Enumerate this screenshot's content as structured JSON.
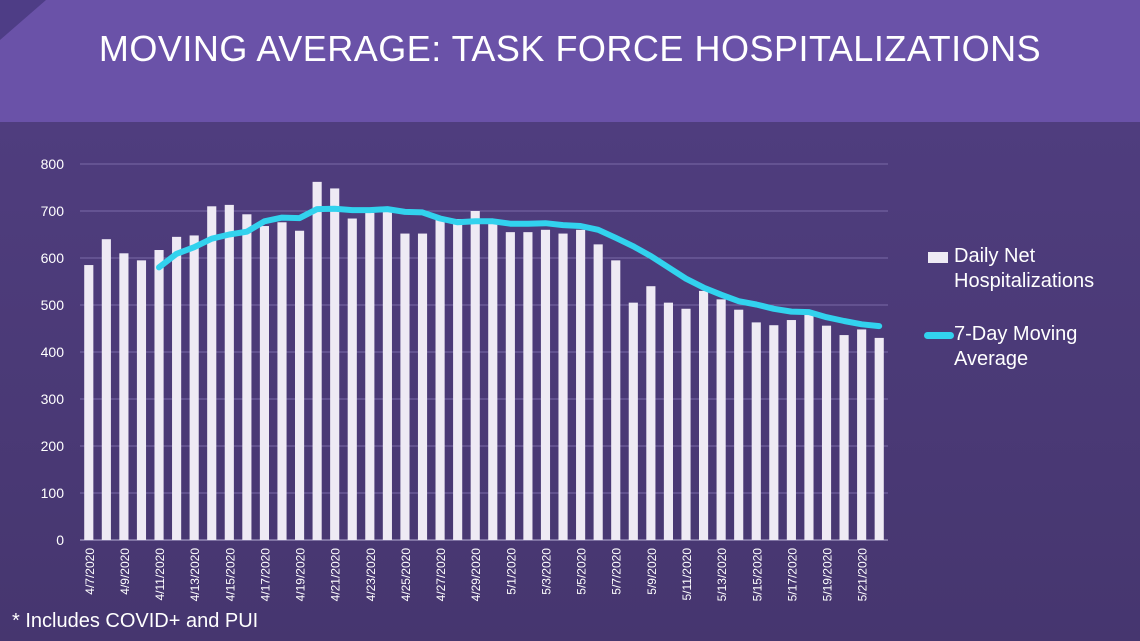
{
  "title": "MOVING AVERAGE: TASK FORCE HOSPITALIZATIONS",
  "footnote": "* Includes COVID+ and PUI",
  "legend": {
    "bar_label": "Daily Net Hospitalizations",
    "line_label": "7-Day Moving Average"
  },
  "colors": {
    "header": "#6a52a8",
    "background": "#4a3a78",
    "bars": "#eeeaf4",
    "line": "#32d2ee",
    "text": "#ffffff"
  },
  "chart_data": {
    "type": "bar",
    "ylim": [
      0,
      800
    ],
    "yticks": [
      0,
      100,
      200,
      300,
      400,
      500,
      600,
      700,
      800
    ],
    "grid": true,
    "legend_position": "right",
    "categories": [
      "4/7/2020",
      "4/8/2020",
      "4/9/2020",
      "4/10/2020",
      "4/11/2020",
      "4/12/2020",
      "4/13/2020",
      "4/14/2020",
      "4/15/2020",
      "4/16/2020",
      "4/17/2020",
      "4/18/2020",
      "4/19/2020",
      "4/20/2020",
      "4/21/2020",
      "4/22/2020",
      "4/23/2020",
      "4/24/2020",
      "4/25/2020",
      "4/26/2020",
      "4/27/2020",
      "4/28/2020",
      "4/29/2020",
      "4/30/2020",
      "5/1/2020",
      "5/2/2020",
      "5/3/2020",
      "5/4/2020",
      "5/5/2020",
      "5/6/2020",
      "5/7/2020",
      "5/8/2020",
      "5/9/2020",
      "5/10/2020",
      "5/11/2020",
      "5/12/2020",
      "5/13/2020",
      "5/14/2020",
      "5/15/2020",
      "5/16/2020",
      "5/17/2020",
      "5/18/2020",
      "5/19/2020",
      "5/20/2020",
      "5/21/2020",
      "5/22/2020"
    ],
    "x_tick_labels": [
      "4/7/2020",
      "",
      "4/9/2020",
      "",
      "4/11/2020",
      "",
      "4/13/2020",
      "",
      "4/15/2020",
      "",
      "4/17/2020",
      "",
      "4/19/2020",
      "",
      "4/21/2020",
      "",
      "4/23/2020",
      "",
      "4/25/2020",
      "",
      "4/27/2020",
      "",
      "4/29/2020",
      "",
      "5/1/2020",
      "",
      "5/3/2020",
      "",
      "5/5/2020",
      "",
      "5/7/2020",
      "",
      "5/9/2020",
      "",
      "5/11/2020",
      "",
      "5/13/2020",
      "",
      "5/15/2020",
      "",
      "5/17/2020",
      "",
      "5/19/2020",
      "",
      "5/21/2020",
      ""
    ],
    "series": [
      {
        "name": "Daily Net Hospitalizations",
        "kind": "bar",
        "values": [
          585,
          640,
          610,
          595,
          617,
          645,
          648,
          710,
          713,
          693,
          668,
          676,
          658,
          762,
          748,
          684,
          696,
          703,
          652,
          652,
          684,
          683,
          700,
          676,
          655,
          655,
          660,
          652,
          660,
          629,
          595,
          505,
          540,
          505,
          492,
          530,
          512,
          490,
          463,
          457,
          468,
          480,
          456,
          436,
          448,
          430
        ]
      },
      {
        "name": "7-Day Moving Average",
        "kind": "line",
        "values": [
          null,
          null,
          null,
          null,
          580,
          609,
          623,
          641,
          650,
          656,
          678,
          686,
          685,
          704,
          705,
          702,
          702,
          704,
          698,
          697,
          684,
          676,
          678,
          678,
          673,
          673,
          674,
          670,
          668,
          660,
          643,
          625,
          604,
          580,
          556,
          537,
          522,
          508,
          501,
          492,
          486,
          485,
          474,
          466,
          459,
          455
        ]
      }
    ]
  }
}
